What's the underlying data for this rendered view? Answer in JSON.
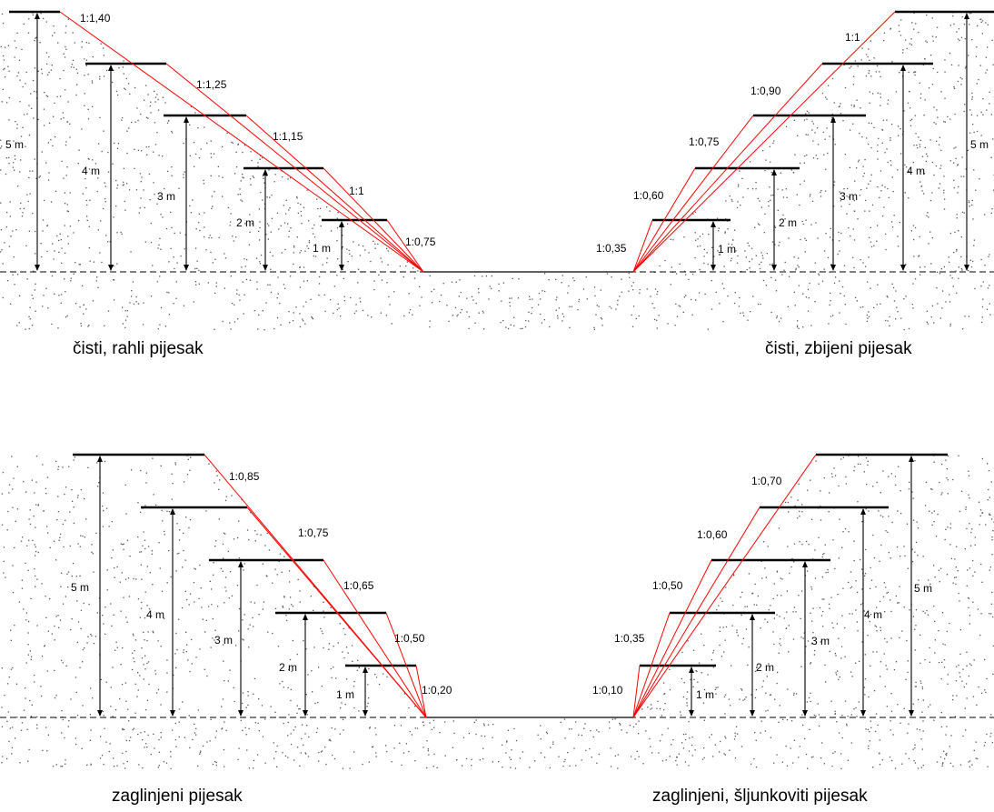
{
  "panels": [
    {
      "caption": "čisti, rahli pijesak",
      "levels": [
        {
          "depth_label": "1 m",
          "ratio": "1:0,75"
        },
        {
          "depth_label": "2 m",
          "ratio": "1:1"
        },
        {
          "depth_label": "3 m",
          "ratio": "1:1,15"
        },
        {
          "depth_label": "4 m",
          "ratio": "1:1,25"
        },
        {
          "depth_label": "5 m",
          "ratio": "1:1,40"
        }
      ]
    },
    {
      "caption": "čisti, zbijeni pijesak",
      "levels": [
        {
          "depth_label": "1 m",
          "ratio": "1:0,35"
        },
        {
          "depth_label": "2 m",
          "ratio": "1:0,60"
        },
        {
          "depth_label": "3 m",
          "ratio": "1:0,75"
        },
        {
          "depth_label": "4 m",
          "ratio": "1:0,90"
        },
        {
          "depth_label": "5 m",
          "ratio": "1:1"
        }
      ]
    },
    {
      "caption": "zaglinjeni pijesak",
      "levels": [
        {
          "depth_label": "1 m",
          "ratio": "1:0,20"
        },
        {
          "depth_label": "2 m",
          "ratio": "1:0,50"
        },
        {
          "depth_label": "3 m",
          "ratio": "1:0,65"
        },
        {
          "depth_label": "4 m",
          "ratio": "1:0,75"
        },
        {
          "depth_label": "5 m",
          "ratio": "1:0,85"
        }
      ]
    },
    {
      "caption": "zaglinjeni, šljunkoviti pijesak",
      "levels": [
        {
          "depth_label": "1 m",
          "ratio": "1:0,10"
        },
        {
          "depth_label": "2 m",
          "ratio": "1:0,35"
        },
        {
          "depth_label": "3 m",
          "ratio": "1:0,50"
        },
        {
          "depth_label": "4 m",
          "ratio": "1:0,60"
        },
        {
          "depth_label": "5 m",
          "ratio": "1:0,70"
        }
      ]
    }
  ],
  "colors": {
    "slope_line": "#ff0000",
    "ground_line": "#000000",
    "soil_dots": "#555555"
  }
}
